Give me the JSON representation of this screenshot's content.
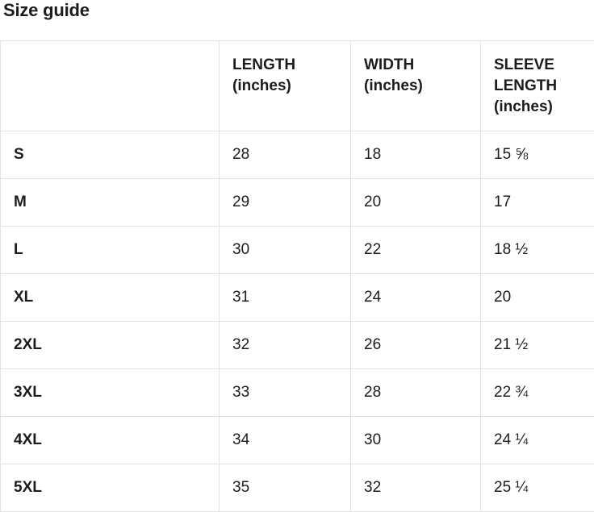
{
  "page": {
    "title": "Size guide"
  },
  "size_table": {
    "headers": {
      "size": "",
      "length": "LENGTH (inches)",
      "width": "WIDTH (inches)",
      "sleeve": "SLEEVE LENGTH (inches)"
    },
    "rows": [
      {
        "size": "S",
        "length": "28",
        "width": "18",
        "sleeve": "15 ⅝"
      },
      {
        "size": "M",
        "length": "29",
        "width": "20",
        "sleeve": "17"
      },
      {
        "size": "L",
        "length": "30",
        "width": "22",
        "sleeve": "18 ½"
      },
      {
        "size": "XL",
        "length": "31",
        "width": "24",
        "sleeve": "20"
      },
      {
        "size": "2XL",
        "length": "32",
        "width": "26",
        "sleeve": "21 ½"
      },
      {
        "size": "3XL",
        "length": "33",
        "width": "28",
        "sleeve": "22 ¾"
      },
      {
        "size": "4XL",
        "length": "34",
        "width": "30",
        "sleeve": "24 ¼"
      },
      {
        "size": "5XL",
        "length": "35",
        "width": "32",
        "sleeve": "25 ¼"
      }
    ]
  },
  "colors": {
    "text": "#1c1c1c",
    "border": "#e2e2e2",
    "background": "#ffffff"
  }
}
